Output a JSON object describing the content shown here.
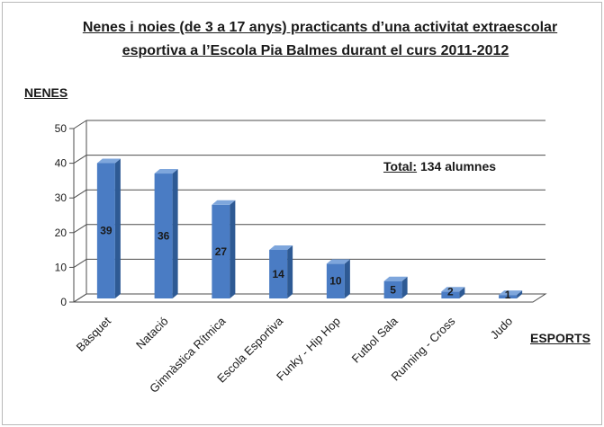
{
  "chart_data": {
    "type": "bar",
    "title": "Nenes i noies (de 3 a 17 anys) practicants d’una activitat extraescolar esportiva a  l’Escola Pia Balmes durant el curs 2011-2012",
    "title_line1": "Nenes i noies (de 3 a 17 anys) practicants d’una activitat extraescolar",
    "title_line2": "esportiva a  l’Escola Pia Balmes durant el curs 2011-2012",
    "ylabel": "NENES",
    "xlabel": "ESPORTS",
    "categories": [
      "Bàsquet",
      "Natació",
      "Gimnàstica Rítmica",
      "Escola Esportiva",
      "Funky - Hip Hop",
      "Futbol Sala",
      "Running - Cross",
      "Judo"
    ],
    "values": [
      39,
      36,
      27,
      14,
      10,
      5,
      2,
      1
    ],
    "data_labels": [
      "39",
      "36",
      "27",
      "14",
      "10",
      "5",
      "2",
      "1"
    ],
    "ylim": [
      0,
      50
    ],
    "yticks": [
      "0",
      "10",
      "20",
      "30",
      "40",
      "50"
    ],
    "grid": true,
    "annotation": {
      "key": "Total:",
      "text": " 134 alumnes"
    },
    "colors": {
      "bar_front": "#4a7cc4",
      "bar_side": "#2e5a94",
      "bar_top": "#7ea6dc",
      "grid": "#4d4d4d"
    }
  }
}
